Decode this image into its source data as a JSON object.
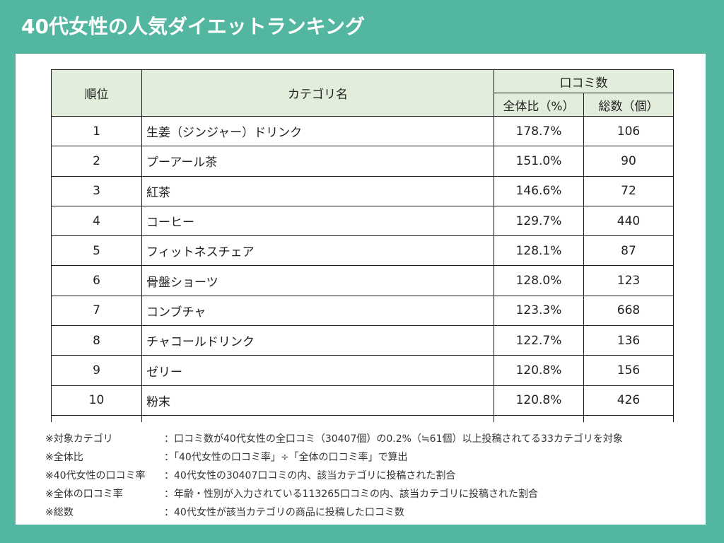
{
  "header": {
    "title": "40代女性の人気ダイエットランキング"
  },
  "table": {
    "columns": {
      "rank": "順位",
      "category": "カテゴリ名",
      "reviews_group": "口コミ数",
      "ratio": "全体比（%）",
      "total": "総数（個）"
    },
    "rows": [
      {
        "rank": "1",
        "category": "生姜（ジンジャー）ドリンク",
        "ratio": "178.7%",
        "total": "106"
      },
      {
        "rank": "2",
        "category": "プーアール茶",
        "ratio": "151.0%",
        "total": "90"
      },
      {
        "rank": "3",
        "category": "紅茶",
        "ratio": "146.6%",
        "total": "72"
      },
      {
        "rank": "4",
        "category": "コーヒー",
        "ratio": "129.7%",
        "total": "440"
      },
      {
        "rank": "5",
        "category": "フィットネスチェア",
        "ratio": "128.1%",
        "total": "87"
      },
      {
        "rank": "6",
        "category": "骨盤ショーツ",
        "ratio": "128.0%",
        "total": "123"
      },
      {
        "rank": "7",
        "category": "コンブチャ",
        "ratio": "123.3%",
        "total": "668"
      },
      {
        "rank": "8",
        "category": "チャコールドリンク",
        "ratio": "122.7%",
        "total": "136"
      },
      {
        "rank": "9",
        "category": "ゼリー",
        "ratio": "120.8%",
        "total": "156"
      },
      {
        "rank": "10",
        "category": "粉末",
        "ratio": "120.8%",
        "total": "426"
      }
    ]
  },
  "notes": [
    {
      "label": "※対象カテゴリ",
      "text": "：口コミ数が40代女性の全口コミ（30407個）の0.2%（≒61個）以上投稿されてる33カテゴリを対象"
    },
    {
      "label": "※全体比",
      "text": "：「40代女性の口コミ率」÷「全体の口コミ率」で算出"
    },
    {
      "label": "※40代女性の口コミ率",
      "text": "：40代女性の30407口コミの内、該当カテゴリに投稿された割合"
    },
    {
      "label": "※全体の口コミ率",
      "text": "：年齢・性別が入力されている113265口コミの内、該当カテゴリに投稿された割合"
    },
    {
      "label": "※総数",
      "text": "：40代女性が該当カテゴリの商品に投稿した口コミ数"
    }
  ],
  "colors": {
    "background": "#52b6a0",
    "panel": "#ffffff",
    "header_cell": "#e2eddb",
    "title_text": "#ffffff"
  }
}
